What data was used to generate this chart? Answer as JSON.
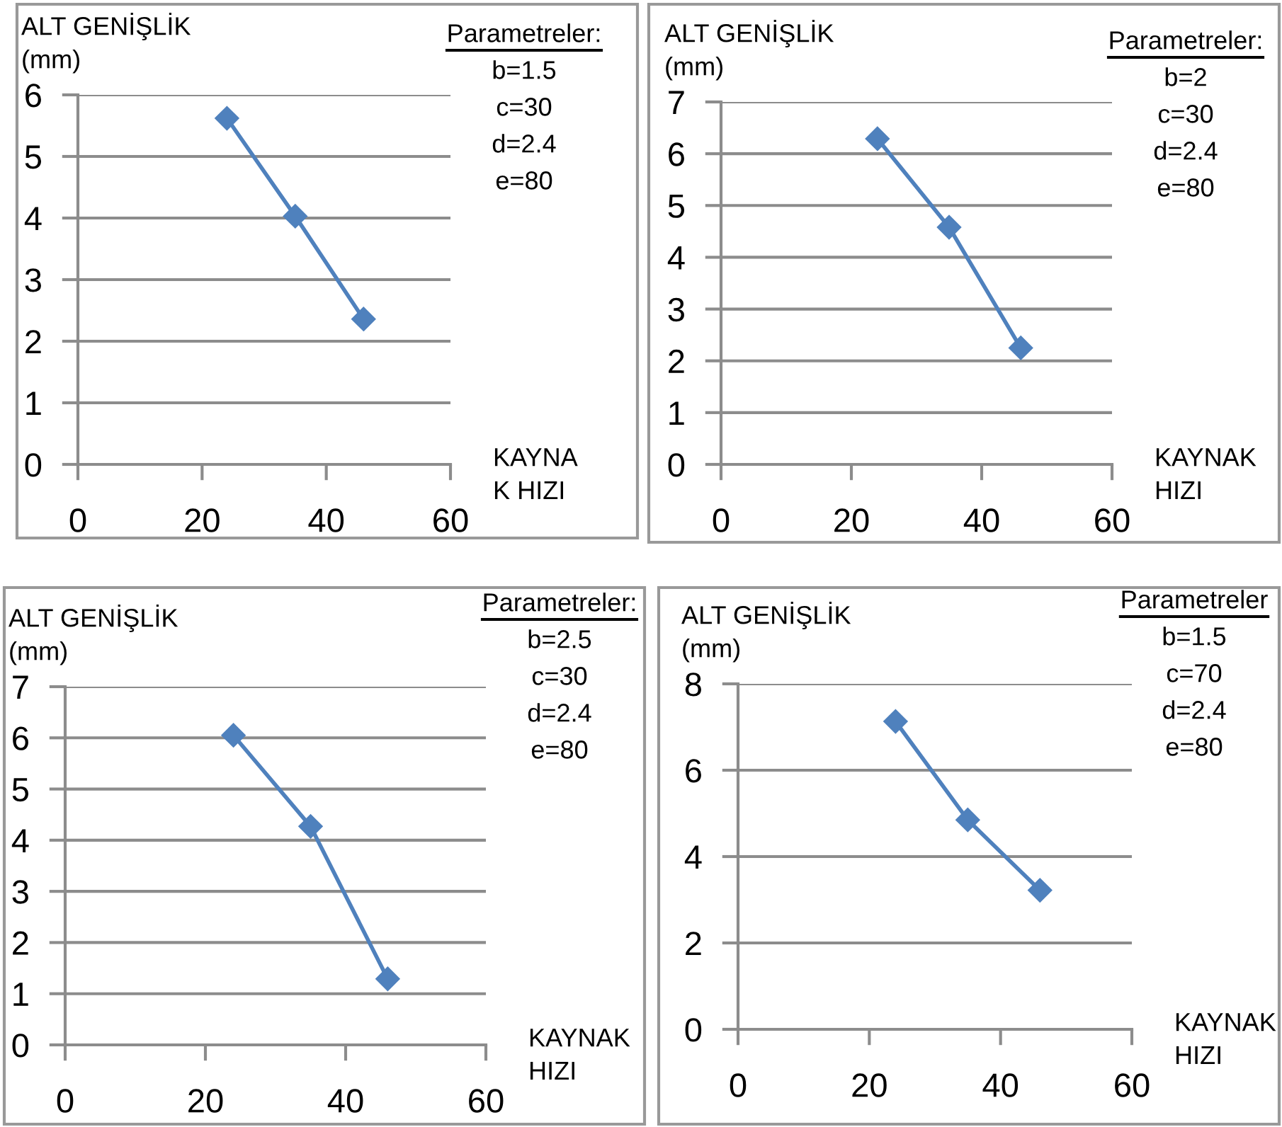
{
  "chart_data": [
    {
      "type": "line",
      "xlabel": "KAYNA\nK HIZI",
      "ylabel": "ALT GENİŞLİK\n(mm)",
      "annotations": [
        "Parametreler:",
        "b=1.5",
        "c=30",
        "d=2.4",
        "e=80"
      ],
      "x": [
        24,
        35,
        46
      ],
      "series": [
        {
          "color": "#4f81bd",
          "values": [
            5.62,
            4.03,
            2.36
          ]
        }
      ],
      "xlim": [
        0,
        60
      ],
      "xticks": [
        0,
        20,
        40,
        60
      ],
      "ylim": [
        0,
        6
      ],
      "yticks": [
        0,
        1,
        2,
        3,
        4,
        5,
        6
      ],
      "grid": "y",
      "marker": "diamond"
    },
    {
      "type": "line",
      "xlabel": "KAYNAK\nHIZI",
      "ylabel": "ALT GENİŞLİK\n(mm)",
      "annotations": [
        "Parametreler:",
        "b=2",
        "c=30",
        "d=2.4",
        "e=80"
      ],
      "x": [
        24,
        35,
        46
      ],
      "series": [
        {
          "color": "#4f81bd",
          "values": [
            6.29,
            4.58,
            2.25
          ]
        }
      ],
      "xlim": [
        0,
        60
      ],
      "xticks": [
        0,
        20,
        40,
        60
      ],
      "ylim": [
        0,
        7
      ],
      "yticks": [
        0,
        1,
        2,
        3,
        4,
        5,
        6,
        7
      ],
      "grid": "y",
      "marker": "diamond"
    },
    {
      "type": "line",
      "xlabel": "KAYNAK\nHIZI",
      "ylabel": "ALT GENİŞLİK\n(mm)",
      "annotations": [
        "Parametreler:",
        "b=2.5",
        "c=30",
        "d=2.4",
        "e=80"
      ],
      "x": [
        24,
        35,
        46
      ],
      "series": [
        {
          "color": "#4f81bd",
          "values": [
            6.05,
            4.27,
            1.29
          ]
        }
      ],
      "xlim": [
        0,
        60
      ],
      "xticks": [
        0,
        20,
        40,
        60
      ],
      "ylim": [
        0,
        7
      ],
      "yticks": [
        0,
        1,
        2,
        3,
        4,
        5,
        6,
        7
      ],
      "grid": "y",
      "marker": "diamond"
    },
    {
      "type": "line",
      "xlabel": "KAYNAK\nHIZI",
      "ylabel": "ALT GENİŞLİK\n(mm)",
      "annotations": [
        "Parametreler",
        "b=1.5",
        "c=70",
        "d=2.4",
        "e=80"
      ],
      "x": [
        24,
        35,
        46
      ],
      "series": [
        {
          "color": "#4f81bd",
          "values": [
            7.13,
            4.85,
            3.22
          ]
        }
      ],
      "xlim": [
        0,
        60
      ],
      "xticks": [
        0,
        20,
        40,
        60
      ],
      "ylim": [
        0,
        8
      ],
      "yticks": [
        0,
        2,
        4,
        6,
        8
      ],
      "grid": "y",
      "marker": "diamond"
    }
  ]
}
